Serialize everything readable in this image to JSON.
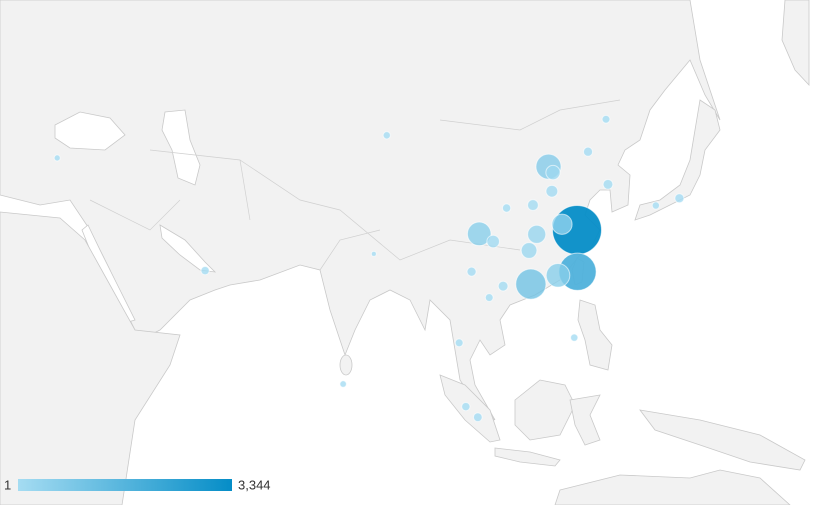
{
  "map": {
    "legend": {
      "min": 1,
      "max": {
        "value": 3344,
        "label": "3,344"
      },
      "colors": [
        "#a5dcf2",
        "#058dc7"
      ]
    },
    "points": [
      {
        "lon": 121.47,
        "lat": 31.23,
        "value": 3344
      },
      {
        "lon": 121.56,
        "lat": 25.03,
        "value": 1800
      },
      {
        "lon": 113.26,
        "lat": 23.13,
        "value": 1100
      },
      {
        "lon": 118.09,
        "lat": 24.48,
        "value": 600
      },
      {
        "lon": 116.4,
        "lat": 39.9,
        "value": 700
      },
      {
        "lon": 104.07,
        "lat": 30.67,
        "value": 600
      },
      {
        "lon": 118.8,
        "lat": 32.06,
        "value": 400
      },
      {
        "lon": 114.3,
        "lat": 30.6,
        "value": 300
      },
      {
        "lon": 112.94,
        "lat": 28.23,
        "value": 200
      },
      {
        "lon": 117.2,
        "lat": 39.13,
        "value": 150
      },
      {
        "lon": 106.55,
        "lat": 29.56,
        "value": 100
      },
      {
        "lon": 117.0,
        "lat": 36.65,
        "value": 80
      },
      {
        "lon": 113.63,
        "lat": 34.75,
        "value": 60
      },
      {
        "lon": 126.98,
        "lat": 37.57,
        "value": 40
      },
      {
        "lon": 108.32,
        "lat": 22.82,
        "value": 40
      },
      {
        "lon": 139.69,
        "lat": 35.69,
        "value": 30
      },
      {
        "lon": 123.43,
        "lat": 41.8,
        "value": 30
      },
      {
        "lon": 102.71,
        "lat": 25.04,
        "value": 30
      },
      {
        "lon": 103.82,
        "lat": 1.35,
        "value": 25
      },
      {
        "lon": 55.3,
        "lat": 25.2,
        "value": 20
      },
      {
        "lon": 108.94,
        "lat": 34.34,
        "value": 20
      },
      {
        "lon": 101.69,
        "lat": 3.14,
        "value": 20
      },
      {
        "lon": 100.5,
        "lat": 13.75,
        "value": 15
      },
      {
        "lon": 105.85,
        "lat": 21.03,
        "value": 15
      },
      {
        "lon": 126.63,
        "lat": 45.75,
        "value": 15
      },
      {
        "lon": 120.98,
        "lat": 14.6,
        "value": 10
      },
      {
        "lon": 87.62,
        "lat": 43.83,
        "value": 10
      },
      {
        "lon": 135.5,
        "lat": 34.69,
        "value": 10
      },
      {
        "lon": 79.86,
        "lat": 6.93,
        "value": 5
      },
      {
        "lon": 28.98,
        "lat": 41.01,
        "value": 3
      },
      {
        "lon": 85.32,
        "lat": 27.72,
        "value": 1
      }
    ]
  }
}
